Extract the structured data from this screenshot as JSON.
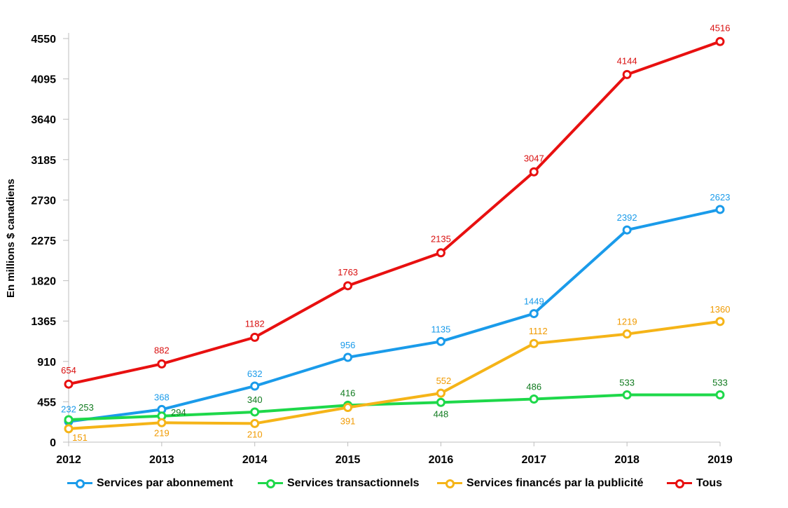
{
  "chart_data": {
    "type": "line",
    "title": "",
    "xlabel": "",
    "ylabel": "En millions $ canadiens",
    "ylim": [
      0,
      4550
    ],
    "yticks": [
      0,
      455,
      910,
      1365,
      1820,
      2275,
      2730,
      3185,
      3640,
      4095,
      4550
    ],
    "x": [
      "2012",
      "2013",
      "2014",
      "2015",
      "2016",
      "2017",
      "2018",
      "2019"
    ],
    "grid": false,
    "legend_position": "bottom",
    "series": [
      {
        "name": "Services par abonnement",
        "color": "#1a9bea",
        "values": [
          232,
          368,
          632,
          956,
          1135,
          1449,
          2392,
          2623
        ]
      },
      {
        "name": "Services transactionnels",
        "color": "#1ed84a",
        "label_color": "#0f7a1e",
        "values": [
          253,
          294,
          340,
          416,
          448,
          486,
          533,
          533
        ]
      },
      {
        "name": "Services financés par la publicité",
        "color": "#f5b418",
        "label_color": "#f09a00",
        "values": [
          151,
          219,
          210,
          391,
          552,
          1112,
          1219,
          1360
        ]
      },
      {
        "name": "Tous",
        "color": "#e81010",
        "label_color": "#d91010",
        "values": [
          654,
          882,
          1182,
          1763,
          2135,
          3047,
          4144,
          4516
        ]
      }
    ]
  }
}
